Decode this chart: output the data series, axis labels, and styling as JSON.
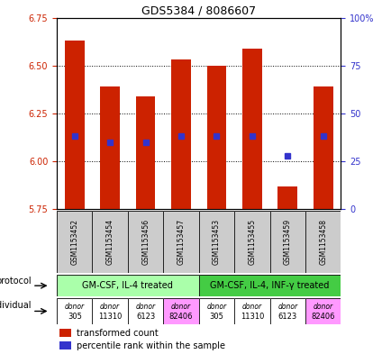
{
  "title": "GDS5384 / 8086607",
  "samples": [
    "GSM1153452",
    "GSM1153454",
    "GSM1153456",
    "GSM1153457",
    "GSM1153453",
    "GSM1153455",
    "GSM1153459",
    "GSM1153458"
  ],
  "bar_values": [
    6.63,
    6.39,
    6.34,
    6.53,
    6.5,
    6.59,
    5.87,
    6.39
  ],
  "bar_base": 5.75,
  "blue_marker_values": [
    6.13,
    6.1,
    6.1,
    6.13,
    6.13,
    6.13,
    6.03,
    6.13
  ],
  "left_ylim": [
    5.75,
    6.75
  ],
  "left_yticks": [
    5.75,
    6.0,
    6.25,
    6.5,
    6.75
  ],
  "right_ylim": [
    0,
    100
  ],
  "right_yticks": [
    0,
    25,
    50,
    75,
    100
  ],
  "right_yticklabels": [
    "0",
    "25",
    "50",
    "75",
    "100%"
  ],
  "bar_color": "#cc2200",
  "blue_marker_color": "#3333cc",
  "bar_width": 0.55,
  "protocol_labels": [
    "GM-CSF, IL-4 treated",
    "GM-CSF, IL-4, INF-γ treated"
  ],
  "protocol_groups": [
    4,
    4
  ],
  "protocol_colors": [
    "#aaffaa",
    "#44cc44"
  ],
  "individual_labels_top": [
    "donor",
    "donor",
    "donor",
    "donor",
    "donor",
    "donor",
    "donor",
    "donor"
  ],
  "individual_labels_bot": [
    "305",
    "11310",
    "6123",
    "82406",
    "305",
    "11310",
    "6123",
    "82406"
  ],
  "individual_colors": [
    "#ffffff",
    "#ffffff",
    "#ffffff",
    "#ff99ff",
    "#ffffff",
    "#ffffff",
    "#ffffff",
    "#ff99ff"
  ],
  "sample_box_color": "#cccccc",
  "legend_red_label": "transformed count",
  "legend_blue_label": "percentile rank within the sample",
  "protocol_row_label": "protocol",
  "individual_row_label": "individual",
  "left_tick_color": "#cc2200",
  "right_tick_color": "#3333cc"
}
